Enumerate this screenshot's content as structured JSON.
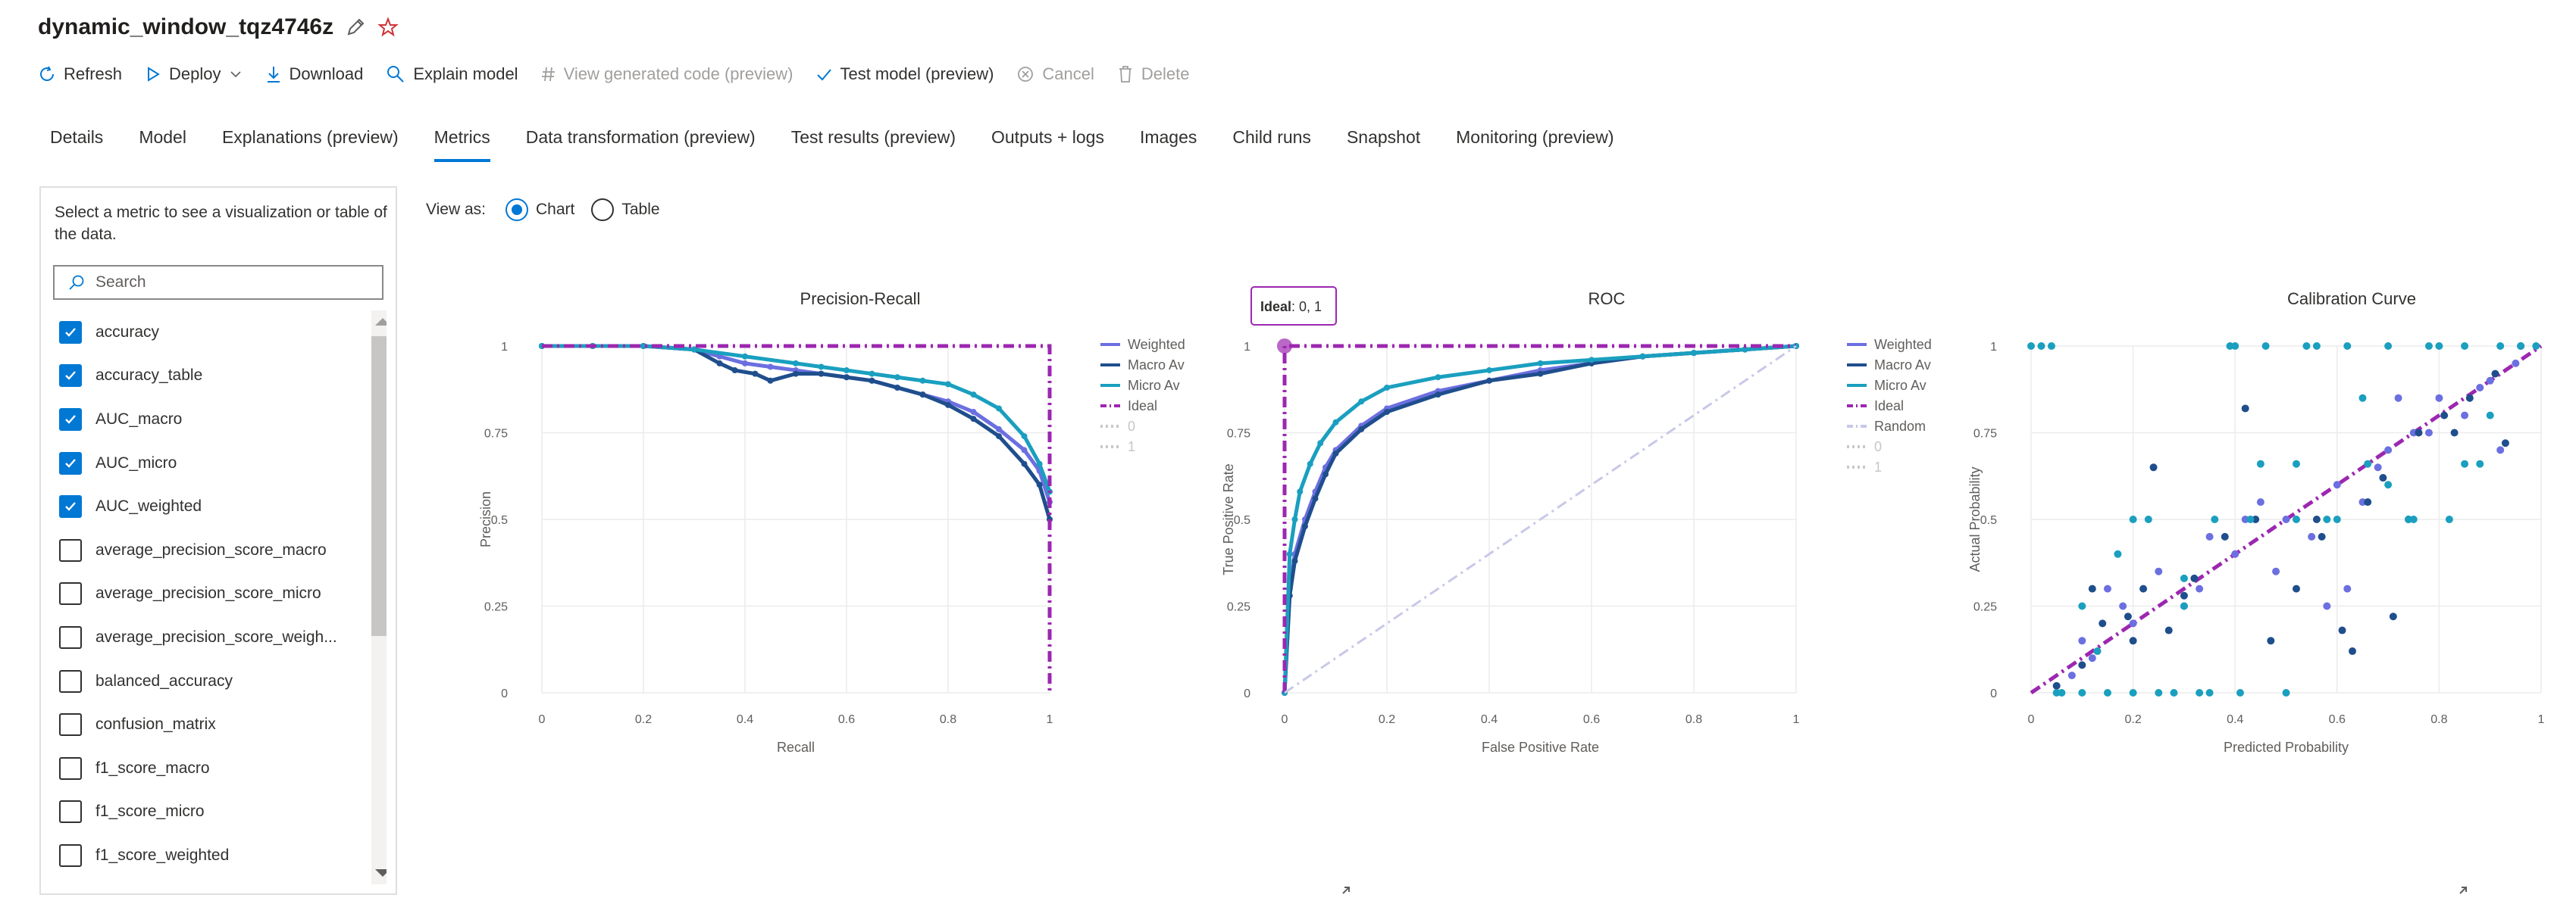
{
  "header": {
    "title": "dynamic_window_tqz4746z"
  },
  "toolbar": {
    "refresh": "Refresh",
    "deploy": "Deploy",
    "download": "Download",
    "explain": "Explain model",
    "view_code": "View generated code (preview)",
    "test_model": "Test model (preview)",
    "cancel": "Cancel",
    "delete": "Delete"
  },
  "tabs": [
    {
      "label": "Details"
    },
    {
      "label": "Model"
    },
    {
      "label": "Explanations (preview)"
    },
    {
      "label": "Metrics",
      "active": true
    },
    {
      "label": "Data transformation (preview)"
    },
    {
      "label": "Test results (preview)"
    },
    {
      "label": "Outputs + logs"
    },
    {
      "label": "Images"
    },
    {
      "label": "Child runs"
    },
    {
      "label": "Snapshot"
    },
    {
      "label": "Monitoring (preview)"
    }
  ],
  "sidebar": {
    "description": "Select a metric to see a visualization or table of the data.",
    "search_placeholder": "Search",
    "metrics": [
      {
        "label": "accuracy",
        "checked": true
      },
      {
        "label": "accuracy_table",
        "checked": true
      },
      {
        "label": "AUC_macro",
        "checked": true
      },
      {
        "label": "AUC_micro",
        "checked": true
      },
      {
        "label": "AUC_weighted",
        "checked": true
      },
      {
        "label": "average_precision_score_macro",
        "checked": false
      },
      {
        "label": "average_precision_score_micro",
        "checked": false
      },
      {
        "label": "average_precision_score_weigh...",
        "checked": false
      },
      {
        "label": "balanced_accuracy",
        "checked": false
      },
      {
        "label": "confusion_matrix",
        "checked": false
      },
      {
        "label": "f1_score_macro",
        "checked": false
      },
      {
        "label": "f1_score_micro",
        "checked": false
      },
      {
        "label": "f1_score_weighted",
        "checked": false
      }
    ]
  },
  "view_as": {
    "label": "View as:",
    "chart": "Chart",
    "table": "Table",
    "selected": "Chart"
  },
  "colors": {
    "accent": "#0078d4",
    "weighted": "#6b6fe0",
    "macro": "#1f4e8c",
    "micro": "#1a9fbf",
    "ideal": "#9c27b0",
    "random": "#c8c8e8"
  },
  "chart_data": [
    {
      "type": "line",
      "title": "Precision-Recall",
      "xlabel": "Recall",
      "ylabel": "Precision",
      "xlim": [
        0,
        1
      ],
      "ylim": [
        0,
        1
      ],
      "xticks": [
        "0",
        "0.2",
        "0.4",
        "0.6",
        "0.8",
        "1"
      ],
      "yticks": [
        "0",
        "0.25",
        "0.5",
        "0.75",
        "1"
      ],
      "legend": [
        "Weighted",
        "Macro Av",
        "Micro Av",
        "Ideal",
        "0",
        "1"
      ],
      "legend_position": "right",
      "series": [
        {
          "name": "Weighted",
          "color": "#6b6fe0",
          "x": [
            0,
            0.1,
            0.2,
            0.3,
            0.35,
            0.4,
            0.45,
            0.5,
            0.55,
            0.6,
            0.65,
            0.7,
            0.75,
            0.8,
            0.85,
            0.9,
            0.95,
            0.98,
            1
          ],
          "y": [
            1,
            1,
            1,
            0.99,
            0.97,
            0.95,
            0.94,
            0.93,
            0.92,
            0.91,
            0.9,
            0.88,
            0.86,
            0.84,
            0.81,
            0.76,
            0.7,
            0.64,
            0.55
          ]
        },
        {
          "name": "Macro Av",
          "color": "#1f4e8c",
          "x": [
            0,
            0.1,
            0.2,
            0.3,
            0.35,
            0.38,
            0.42,
            0.45,
            0.5,
            0.55,
            0.6,
            0.65,
            0.7,
            0.75,
            0.8,
            0.85,
            0.9,
            0.95,
            0.98,
            1
          ],
          "y": [
            1,
            1,
            1,
            0.99,
            0.95,
            0.93,
            0.92,
            0.9,
            0.92,
            0.92,
            0.91,
            0.9,
            0.88,
            0.86,
            0.83,
            0.79,
            0.74,
            0.66,
            0.6,
            0.5
          ]
        },
        {
          "name": "Micro Av",
          "color": "#1a9fbf",
          "x": [
            0,
            0.1,
            0.2,
            0.3,
            0.4,
            0.5,
            0.55,
            0.6,
            0.65,
            0.7,
            0.75,
            0.8,
            0.85,
            0.9,
            0.95,
            0.98,
            1
          ],
          "y": [
            1,
            1,
            1,
            0.99,
            0.97,
            0.95,
            0.94,
            0.93,
            0.92,
            0.91,
            0.9,
            0.89,
            0.86,
            0.82,
            0.74,
            0.66,
            0.58
          ]
        },
        {
          "name": "Ideal",
          "color": "#9c27b0",
          "dash": true,
          "x": [
            0,
            1,
            1
          ],
          "y": [
            1,
            1,
            0
          ]
        }
      ]
    },
    {
      "type": "line",
      "title": "ROC",
      "xlabel": "False Positive Rate",
      "ylabel": "True Positive Rate",
      "xlim": [
        0,
        1
      ],
      "ylim": [
        0,
        1
      ],
      "xticks": [
        "0",
        "0.2",
        "0.4",
        "0.6",
        "0.8",
        "1"
      ],
      "yticks": [
        "0",
        "0.25",
        "0.5",
        "0.75",
        "1"
      ],
      "legend": [
        "Weighted",
        "Macro Av",
        "Micro Av",
        "Ideal",
        "Random",
        "0",
        "1"
      ],
      "legend_position": "right",
      "tooltip": {
        "label": "Ideal",
        "value": "0, 1"
      },
      "series": [
        {
          "name": "Weighted",
          "color": "#6b6fe0",
          "x": [
            0,
            0.01,
            0.02,
            0.04,
            0.06,
            0.08,
            0.1,
            0.15,
            0.2,
            0.3,
            0.4,
            0.5,
            0.6,
            0.7,
            0.8,
            0.9,
            1
          ],
          "y": [
            0,
            0.3,
            0.4,
            0.5,
            0.58,
            0.65,
            0.7,
            0.77,
            0.82,
            0.87,
            0.9,
            0.93,
            0.95,
            0.97,
            0.98,
            0.99,
            1
          ]
        },
        {
          "name": "Macro Av",
          "color": "#1f4e8c",
          "x": [
            0,
            0.01,
            0.02,
            0.04,
            0.06,
            0.08,
            0.1,
            0.15,
            0.2,
            0.3,
            0.4,
            0.5,
            0.6,
            0.7,
            0.8,
            0.9,
            1
          ],
          "y": [
            0,
            0.28,
            0.38,
            0.48,
            0.56,
            0.63,
            0.69,
            0.76,
            0.81,
            0.86,
            0.9,
            0.92,
            0.95,
            0.97,
            0.98,
            0.99,
            1
          ]
        },
        {
          "name": "Micro Av",
          "color": "#1a9fbf",
          "x": [
            0,
            0.01,
            0.02,
            0.03,
            0.05,
            0.07,
            0.1,
            0.15,
            0.2,
            0.3,
            0.4,
            0.5,
            0.6,
            0.7,
            0.8,
            0.9,
            1
          ],
          "y": [
            0,
            0.4,
            0.5,
            0.58,
            0.66,
            0.72,
            0.78,
            0.84,
            0.88,
            0.91,
            0.93,
            0.95,
            0.96,
            0.97,
            0.98,
            0.99,
            1
          ]
        },
        {
          "name": "Ideal",
          "color": "#9c27b0",
          "dash": true,
          "x": [
            0,
            0,
            1
          ],
          "y": [
            0,
            1,
            1
          ]
        },
        {
          "name": "Random",
          "color": "#c8c8e8",
          "dash": true,
          "x": [
            0,
            1
          ],
          "y": [
            0,
            1
          ]
        }
      ]
    },
    {
      "type": "scatter",
      "title": "Calibration Curve",
      "xlabel": "Predicted Probability",
      "ylabel": "Actual Probability",
      "xlim": [
        0,
        1
      ],
      "ylim": [
        0,
        1
      ],
      "xticks": [
        "0",
        "0.2",
        "0.4",
        "0.6",
        "0.8",
        "1"
      ],
      "yticks": [
        "0",
        "0.25",
        "0.5",
        "0.75",
        "1"
      ],
      "series": [
        {
          "name": "Ideal",
          "color": "#9c27b0",
          "dash": true,
          "x": [
            0,
            1
          ],
          "y": [
            0,
            1
          ]
        },
        {
          "name": "Weighted",
          "color": "#6b6fe0",
          "x": [
            0.08,
            0.12,
            0.15,
            0.2,
            0.25,
            0.3,
            0.35,
            0.4,
            0.45,
            0.5,
            0.55,
            0.6,
            0.65,
            0.7,
            0.75,
            0.8,
            0.85,
            0.9,
            0.95,
            0.1,
            0.18,
            0.33,
            0.42,
            0.48,
            0.58,
            0.62,
            0.68,
            0.72,
            0.78,
            0.88,
            0.92
          ],
          "y": [
            0.05,
            0.1,
            0.3,
            0.2,
            0.35,
            0.25,
            0.45,
            0.4,
            0.55,
            0.5,
            0.45,
            0.6,
            0.55,
            0.7,
            0.75,
            0.85,
            0.8,
            0.9,
            0.95,
            0.15,
            0.25,
            0.3,
            0.5,
            0.35,
            0.25,
            0.3,
            0.65,
            0.85,
            0.75,
            0.88,
            0.7
          ]
        },
        {
          "name": "Macro Av",
          "color": "#1f4e8c",
          "x": [
            0.05,
            0.1,
            0.14,
            0.19,
            0.22,
            0.27,
            0.32,
            0.38,
            0.44,
            0.52,
            0.56,
            0.61,
            0.66,
            0.71,
            0.76,
            0.81,
            0.86,
            0.91,
            0.96,
            0.12,
            0.2,
            0.24,
            0.3,
            0.42,
            0.47,
            0.57,
            0.63,
            0.69,
            0.74,
            0.83,
            0.93
          ],
          "y": [
            0.02,
            0.08,
            0.2,
            0.22,
            0.3,
            0.18,
            0.33,
            0.45,
            0.5,
            0.3,
            0.5,
            0.18,
            0.55,
            0.22,
            0.75,
            0.8,
            0.85,
            0.92,
            1,
            0.3,
            0.15,
            0.65,
            0.28,
            0.82,
            0.15,
            0.45,
            0.12,
            0.62,
            0.5,
            0.75,
            0.72
          ]
        },
        {
          "name": "Micro Av",
          "color": "#1a9fbf",
          "x": [
            0.0,
            0.02,
            0.04,
            0.06,
            0.1,
            0.13,
            0.17,
            0.2,
            0.23,
            0.28,
            0.3,
            0.33,
            0.36,
            0.39,
            0.41,
            0.43,
            0.46,
            0.5,
            0.52,
            0.54,
            0.58,
            0.62,
            0.66,
            0.7,
            0.74,
            0.78,
            0.82,
            0.85,
            0.88,
            0.92,
            0.96,
            0.99,
            0.05,
            0.1,
            0.15,
            0.2,
            0.25,
            0.3,
            0.35,
            0.4,
            0.45,
            0.52,
            0.56,
            0.6,
            0.65,
            0.7,
            0.75,
            0.8,
            0.85,
            0.9
          ],
          "y": [
            1,
            1,
            1,
            0,
            0,
            0.12,
            0.4,
            0,
            0.5,
            0,
            0.33,
            0,
            0.5,
            1,
            0,
            0.5,
            1,
            0,
            0.66,
            1,
            0.5,
            1,
            0.66,
            1,
            0.5,
            1,
            0.5,
            1,
            0.66,
            1,
            1,
            1,
            0,
            0.25,
            0,
            0.5,
            0,
            0.25,
            0,
            1,
            0.66,
            0.5,
            1,
            0.5,
            0.85,
            0.6,
            0.5,
            1,
            0.66,
            0.8
          ]
        }
      ]
    }
  ]
}
